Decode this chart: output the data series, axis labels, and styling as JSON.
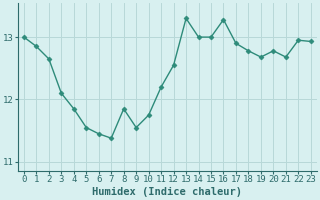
{
  "x": [
    0,
    1,
    2,
    3,
    4,
    5,
    6,
    7,
    8,
    9,
    10,
    11,
    12,
    13,
    14,
    15,
    16,
    17,
    18,
    19,
    20,
    21,
    22,
    23
  ],
  "y": [
    13.0,
    12.85,
    12.65,
    12.1,
    11.85,
    11.55,
    11.45,
    11.38,
    11.85,
    11.55,
    11.75,
    12.2,
    12.55,
    13.3,
    13.0,
    13.0,
    13.28,
    12.9,
    12.78,
    12.68,
    12.78,
    12.68,
    12.95,
    12.93
  ],
  "line_color": "#2e8b7a",
  "marker": "D",
  "marker_size": 2.5,
  "bg_color": "#d8f0f0",
  "grid_color": "#b8d8d8",
  "xlabel": "Humidex (Indice chaleur)",
  "ylim": [
    10.85,
    13.55
  ],
  "xlim": [
    -0.5,
    23.5
  ],
  "yticks": [
    11,
    12,
    13
  ],
  "xticks": [
    0,
    1,
    2,
    3,
    4,
    5,
    6,
    7,
    8,
    9,
    10,
    11,
    12,
    13,
    14,
    15,
    16,
    17,
    18,
    19,
    20,
    21,
    22,
    23
  ],
  "label_color": "#2e6b6b",
  "label_fontsize": 7.5,
  "tick_fontsize": 6.5,
  "linewidth": 1.0
}
